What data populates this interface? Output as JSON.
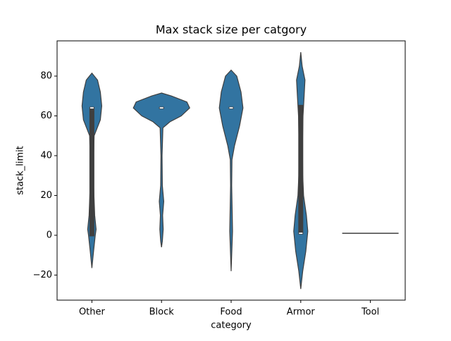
{
  "chart_data": {
    "type": "violin",
    "title": "Max stack size per catgory",
    "xlabel": "category",
    "ylabel": "stack_limit",
    "categories": [
      "Other",
      "Block",
      "Food",
      "Armor",
      "Tool"
    ],
    "color": "#3274a1",
    "edge_color": "#3f3f3f",
    "ylim": [
      -32.6,
      97.7
    ],
    "yticks": [
      {
        "value": -20,
        "label": "−20"
      },
      0,
      20,
      40,
      60,
      80
    ],
    "violins": [
      {
        "y": [
          81.5,
          78,
          72,
          65,
          58,
          50,
          40,
          25,
          10,
          3,
          0,
          -8,
          -16.5
        ],
        "width": [
          0,
          0.2,
          0.3,
          0.35,
          0.3,
          0.08,
          0.06,
          0.06,
          0.1,
          0.15,
          0.12,
          0.06,
          0
        ],
        "q1": 0,
        "median": 64,
        "q3": 64
      },
      {
        "y": [
          71.5,
          70,
          67,
          64,
          60,
          57,
          54,
          40,
          25,
          17,
          10,
          3,
          -3,
          -6
        ],
        "width": [
          0,
          0.35,
          0.9,
          1.0,
          0.7,
          0.3,
          0.05,
          0.02,
          0.03,
          0.08,
          0.04,
          0.06,
          0.03,
          0
        ],
        "q1": 64,
        "median": 64,
        "q3": 64
      },
      {
        "y": [
          83,
          80,
          72,
          64,
          55,
          45,
          38,
          25,
          10,
          2,
          -10,
          -18
        ],
        "width": [
          0,
          0.2,
          0.35,
          0.42,
          0.3,
          0.12,
          0.03,
          0.02,
          0.04,
          0.05,
          0.02,
          0
        ],
        "q1": 64,
        "median": 64,
        "q3": 64
      },
      {
        "y": [
          92,
          85,
          78,
          70,
          60,
          45,
          30,
          20,
          10,
          2,
          -8,
          -18,
          -27
        ],
        "width": [
          0,
          0.05,
          0.15,
          0.12,
          0.08,
          0.06,
          0.07,
          0.1,
          0.2,
          0.25,
          0.18,
          0.07,
          0
        ],
        "q1": 1,
        "median": 1,
        "q3": 65
      },
      {
        "y": [
          1
        ],
        "width": [
          1
        ]
      }
    ]
  }
}
